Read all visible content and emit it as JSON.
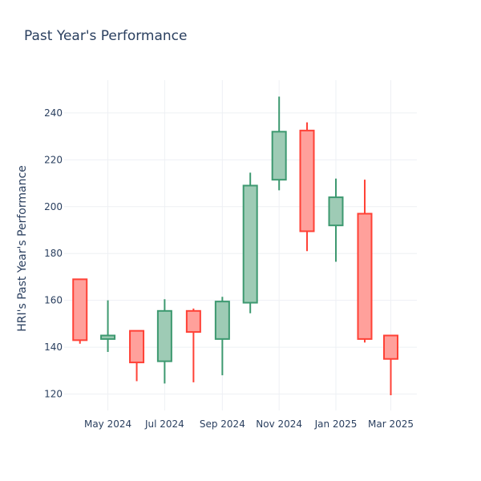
{
  "chart_data": {
    "type": "candlestick",
    "title": "Past Year's Performance",
    "ylabel": "HRI's Past Year's Performance",
    "xlabel": "",
    "ylim": [
      113,
      254
    ],
    "x_range": [
      "2024-03-15",
      "2025-03-29"
    ],
    "y_ticks": [
      120,
      140,
      160,
      180,
      200,
      220,
      240
    ],
    "x_ticks": [
      {
        "date": "2024-05-01",
        "label": "May 2024"
      },
      {
        "date": "2024-07-01",
        "label": "Jul 2024"
      },
      {
        "date": "2024-09-01",
        "label": "Sep 2024"
      },
      {
        "date": "2024-11-01",
        "label": "Nov 2024"
      },
      {
        "date": "2025-01-01",
        "label": "Jan 2025"
      },
      {
        "date": "2025-03-01",
        "label": "Mar 2025"
      }
    ],
    "grid": true,
    "increasing_color": "#3d9970",
    "increasing_fill": "#9ecbb5",
    "decreasing_color": "#ff4136",
    "decreasing_fill": "#ffa09b",
    "candles": [
      {
        "date": "2024-04-01",
        "open": 169,
        "high": 169,
        "low": 141.5,
        "close": 143
      },
      {
        "date": "2024-05-01",
        "open": 143.5,
        "high": 160,
        "low": 138,
        "close": 145
      },
      {
        "date": "2024-06-01",
        "open": 147,
        "high": 147,
        "low": 125.5,
        "close": 133.5
      },
      {
        "date": "2024-07-01",
        "open": 134,
        "high": 160.5,
        "low": 124.5,
        "close": 155.5
      },
      {
        "date": "2024-08-01",
        "open": 155.5,
        "high": 156.5,
        "low": 125,
        "close": 146.5
      },
      {
        "date": "2024-09-01",
        "open": 143.5,
        "high": 161.5,
        "low": 128,
        "close": 159.5
      },
      {
        "date": "2024-10-01",
        "open": 159,
        "high": 214.5,
        "low": 154.5,
        "close": 209
      },
      {
        "date": "2024-11-01",
        "open": 211.5,
        "high": 247,
        "low": 207,
        "close": 232
      },
      {
        "date": "2024-12-01",
        "open": 232.5,
        "high": 236,
        "low": 181,
        "close": 189.5
      },
      {
        "date": "2025-01-01",
        "open": 192,
        "high": 212,
        "low": 176.5,
        "close": 204
      },
      {
        "date": "2025-02-01",
        "open": 197,
        "high": 211.5,
        "low": 142,
        "close": 143.5
      },
      {
        "date": "2025-03-01",
        "open": 145,
        "high": 145,
        "low": 119.5,
        "close": 135
      }
    ]
  }
}
